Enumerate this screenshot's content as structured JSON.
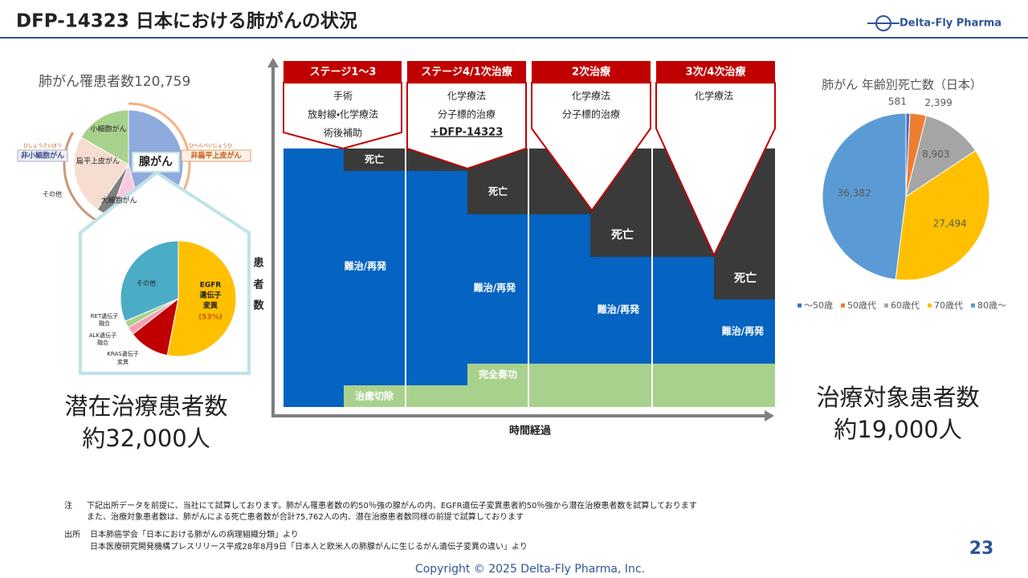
{
  "header": {
    "title": "DFP-14323  日本における肺がんの状況",
    "logo": "Delta-Fly Pharma"
  },
  "left": {
    "title": "肺がん罹患者数120,759",
    "outer_labels": [
      "小細胞がん",
      "扁平上皮がん",
      "その他",
      "大細胞がん",
      "腺がん"
    ],
    "tags": [
      "非小細胞がん",
      "非扁平上皮がん"
    ],
    "ruby": [
      "ひしょうさいぼう",
      "ひへんぺいじょうひ"
    ],
    "inner_labels": [
      "その他",
      "RET遺伝子",
      "融合",
      "ALK遺伝子",
      "融合",
      "KRAS遺伝子",
      "変異"
    ],
    "egfr": [
      "EGFR",
      "遺伝子",
      "変異",
      "(53%)"
    ],
    "big": [
      "潜在治療患者数",
      "約32,000人"
    ]
  },
  "center": {
    "stages": [
      {
        "title": "ステージ1～3",
        "lines": [
          "手術",
          "放射線・化学療法",
          "術後補助"
        ]
      },
      {
        "title": "ステージ4/1次治療",
        "lines": [
          "化学療法",
          "分子標的治療",
          "+DFP-14323"
        ]
      },
      {
        "title": "2次治療",
        "lines": [
          "化学療法",
          "分子標的治療"
        ]
      },
      {
        "title": "3次/4次治療",
        "lines": [
          "化学療法"
        ]
      }
    ],
    "death": "死亡",
    "relapse": "難治/再発",
    "cr": "完全奏功",
    "cure": "治癒切除",
    "y_label": [
      "患",
      "者",
      "数"
    ],
    "x_label": "時間経過"
  },
  "chart_data": {
    "type": "pie",
    "title": "肺がん 年齢別死亡数（日本）",
    "categories": [
      "～50歳",
      "50歳代",
      "60歳代",
      "70歳代",
      "80歳～"
    ],
    "values": [
      581,
      2399,
      8903,
      27494,
      36382
    ],
    "value_labels": [
      "581",
      "2,399",
      "8,903",
      "27,494",
      "36,382"
    ],
    "colors": [
      "#4472c4",
      "#ed7d31",
      "#a5a5a5",
      "#ffc000",
      "#5b9bd5"
    ]
  },
  "right": {
    "big": [
      "治療対象患者数",
      "約19,000人"
    ]
  },
  "footer": {
    "note_label": "注",
    "notes": [
      "下記出所データを前提に、当社にて試算しております。肺がん罹患者数の約50％強の腺がんの内、EGFR遺伝子変異患者約50％強から潜在治療患者数を試算しております",
      "また、治療対象患者数は、肺がんによる死亡患者数が合計75,762人の内、潜在治療患者数同様の前提で試算しております"
    ],
    "source_label": "出所",
    "sources": [
      "日本肺癌学会「日本における肺がんの病理組織分類」より",
      "日本医療研究開発機構プレスリリース平成28年8月9日「日本人と欧米人の肺腺がんに生じるがん遺伝子変異の違い」より"
    ],
    "page": "23",
    "copyright": "Copyright © 2025  Delta-Fly Pharma, Inc."
  }
}
